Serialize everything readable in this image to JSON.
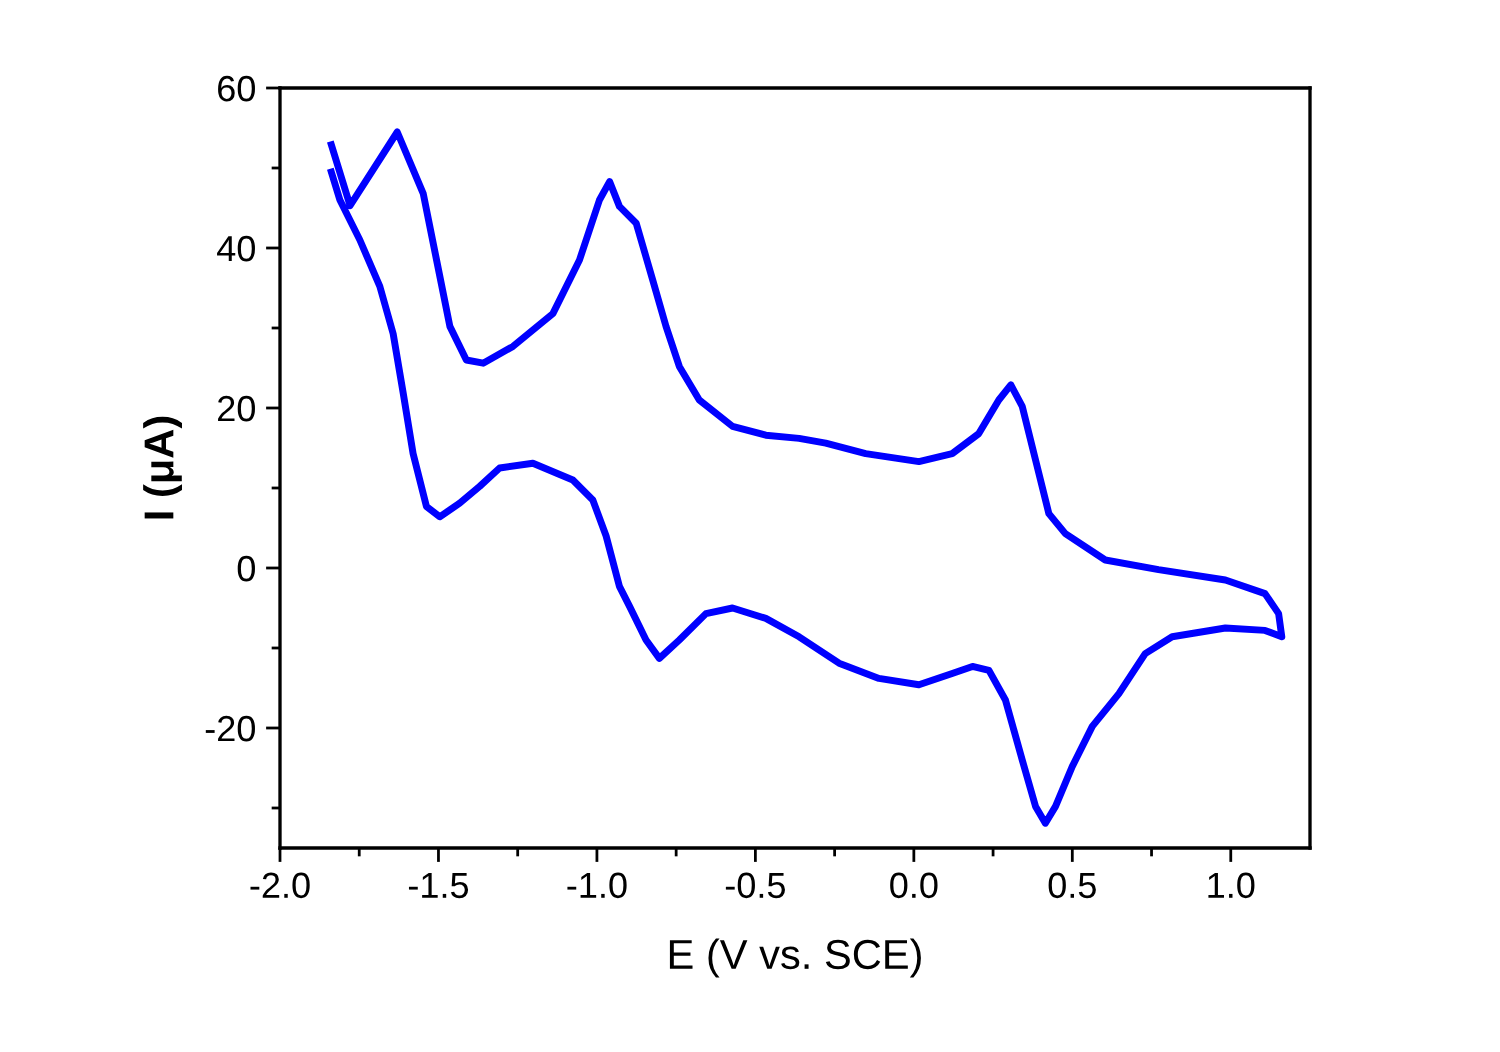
{
  "chart_data": {
    "type": "line",
    "xlabel": "E (V vs. SCE)",
    "ylabel": "I (μA)",
    "xlim": [
      -2.0,
      1.25
    ],
    "ylim": [
      -35,
      60
    ],
    "xticks": [
      {
        "value": -2,
        "label": "-2.0"
      },
      {
        "value": -1.75,
        "label": null
      },
      -1.5,
      {
        "value": -1.25,
        "label": null
      },
      {
        "value": -1,
        "label": "-1.0"
      },
      {
        "value": -0.75,
        "label": null
      },
      -0.5,
      {
        "value": -0.25,
        "label": null
      },
      {
        "value": 0,
        "label": "0.0"
      },
      {
        "value": 0.25,
        "label": null
      },
      0.5,
      {
        "value": 0.75,
        "label": null
      },
      {
        "value": 1,
        "label": "1.0"
      }
    ],
    "yticks": [
      {
        "value": -30,
        "label": null
      },
      -20,
      {
        "value": -10,
        "label": null
      },
      0,
      {
        "value": 10,
        "label": null
      },
      20,
      {
        "value": 30,
        "label": null
      },
      40,
      {
        "value": 50,
        "label": null
      },
      60
    ],
    "marker": "none",
    "line_style": "solid",
    "series": [
      {
        "color": "#0000ff",
        "x": [
          -1.838,
          -1.779,
          -1.63,
          -1.548,
          -1.506,
          -1.464,
          -1.412,
          -1.359,
          -1.265,
          -1.139,
          -1.055,
          -0.992,
          -0.96,
          -0.929,
          -0.876,
          -0.824,
          -0.782,
          -0.74,
          -0.677,
          -0.572,
          -0.467,
          -0.362,
          -0.278,
          -0.152,
          0.016,
          0.121,
          0.205,
          0.268,
          0.306,
          0.342,
          0.384,
          0.426,
          0.478,
          0.604,
          0.772,
          0.983,
          1.108,
          1.151,
          1.161,
          1.108,
          0.983,
          0.815,
          0.73,
          0.647,
          0.563,
          0.5,
          0.447,
          0.415,
          0.384,
          0.342,
          0.289,
          0.237,
          0.185,
          0.121,
          0.016,
          -0.11,
          -0.236,
          -0.362,
          -0.467,
          -0.572,
          -0.656,
          -0.74,
          -0.803,
          -0.845,
          -0.897,
          -0.929,
          -0.971,
          -1.013,
          -1.076,
          -1.202,
          -1.307,
          -1.37,
          -1.433,
          -1.496,
          -1.538,
          -1.58,
          -1.611,
          -1.643,
          -1.685,
          -1.748,
          -1.811,
          -1.838
        ],
        "values": [
          52.9,
          45.3,
          54.5,
          46.8,
          38.5,
          30.2,
          26.0,
          25.6,
          27.7,
          31.8,
          38.5,
          46.0,
          48.3,
          45.2,
          43.1,
          36.0,
          30.2,
          25.2,
          21.0,
          17.7,
          16.6,
          16.2,
          15.6,
          14.3,
          13.3,
          14.3,
          16.8,
          21.0,
          22.9,
          20.2,
          13.5,
          6.8,
          4.3,
          1.0,
          -0.2,
          -1.5,
          -3.2,
          -5.7,
          -8.6,
          -7.8,
          -7.5,
          -8.6,
          -10.7,
          -15.7,
          -19.8,
          -24.8,
          -29.8,
          -31.9,
          -29.8,
          -24.0,
          -16.5,
          -12.8,
          -12.3,
          -13.2,
          -14.6,
          -13.8,
          -11.9,
          -8.6,
          -6.3,
          -5.0,
          -5.7,
          -9.0,
          -11.3,
          -9.0,
          -4.8,
          -2.3,
          4.0,
          8.5,
          11.0,
          13.1,
          12.5,
          10.2,
          8.1,
          6.4,
          7.7,
          14.3,
          21.8,
          29.3,
          35.2,
          41.0,
          46.0,
          49.5
        ]
      }
    ]
  }
}
